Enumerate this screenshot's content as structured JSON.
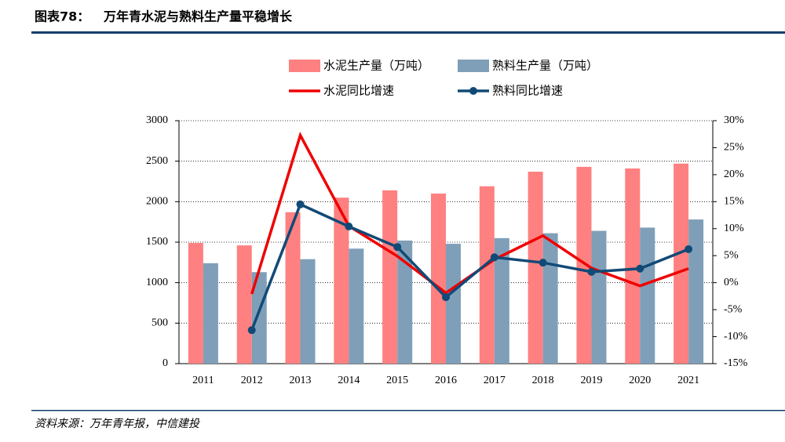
{
  "header": {
    "label": "图表78：",
    "title": "万年青水泥与熟料生产量平稳增长"
  },
  "source": "资料来源：万年青年报，中信建投",
  "chart_data": {
    "type": "bar",
    "categories": [
      "2011",
      "2012",
      "2013",
      "2014",
      "2015",
      "2016",
      "2017",
      "2018",
      "2019",
      "2020",
      "2021"
    ],
    "series": [
      {
        "name": "水泥生产量（万吨）",
        "type": "bar",
        "color": "#fe8080",
        "values": [
          1490,
          1460,
          1870,
          2050,
          2140,
          2100,
          2190,
          2370,
          2430,
          2410,
          2470
        ]
      },
      {
        "name": "熟料生产量（万吨）",
        "type": "bar",
        "color": "#7f9fb9",
        "values": [
          1240,
          1130,
          1290,
          1420,
          1520,
          1480,
          1550,
          1610,
          1640,
          1680,
          1780
        ]
      },
      {
        "name": "水泥同比增速",
        "type": "line",
        "axis": "y2",
        "color": "#f00000",
        "values": [
          null,
          -2.1,
          27.3,
          10.5,
          4.9,
          -1.9,
          4.3,
          8.7,
          2.7,
          -0.6,
          2.6
        ]
      },
      {
        "name": "熟料同比增速",
        "type": "line",
        "axis": "y2",
        "color": "#114a76",
        "marker": true,
        "values": [
          null,
          -8.8,
          14.5,
          10.4,
          6.6,
          -2.7,
          4.7,
          3.7,
          2.0,
          2.6,
          6.2
        ]
      }
    ],
    "ylim": [
      0,
      3000
    ],
    "yticks": [
      0,
      500,
      1000,
      1500,
      2000,
      2500,
      3000
    ],
    "y2lim": [
      -15,
      30
    ],
    "y2ticks": [
      {
        "value": -15,
        "label": "-15%"
      },
      {
        "value": -10,
        "label": "-10%"
      },
      {
        "value": -5,
        "label": "-5%"
      },
      {
        "value": 0,
        "label": "0%"
      },
      {
        "value": 5,
        "label": "5%"
      },
      {
        "value": 10,
        "label": "10%"
      },
      {
        "value": 15,
        "label": "15%"
      },
      {
        "value": 20,
        "label": "20%"
      },
      {
        "value": 25,
        "label": "25%"
      },
      {
        "value": 30,
        "label": "30%"
      }
    ],
    "grid": true
  }
}
